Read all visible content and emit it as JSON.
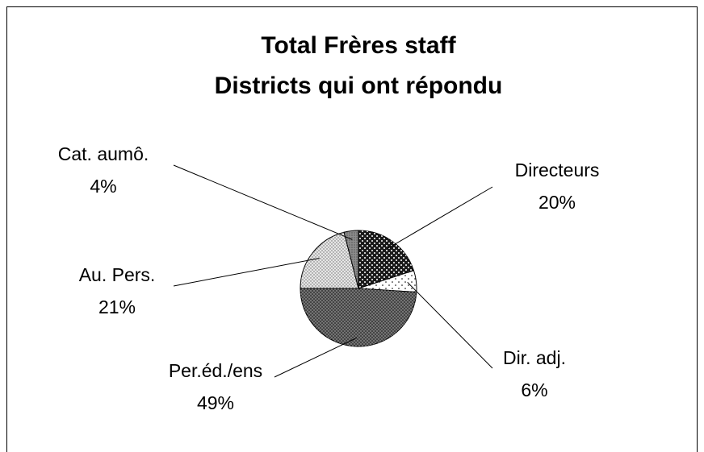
{
  "chart_data": {
    "type": "pie",
    "title": "Total Frères staff",
    "subtitle": "Districts qui ont répondu",
    "categories": [
      "Directeurs",
      "Dir. adj.",
      "Per.éd./ens",
      "Au. Pers.",
      "Cat. aumô."
    ],
    "values": [
      20,
      6,
      49,
      21,
      4
    ],
    "value_labels": [
      "20%",
      "6%",
      "49%",
      "21%",
      "4%"
    ],
    "colors": [
      "#1a1a1a",
      "#ffffff",
      "#444444",
      "#e6e6e6",
      "#8c8c8c"
    ]
  }
}
